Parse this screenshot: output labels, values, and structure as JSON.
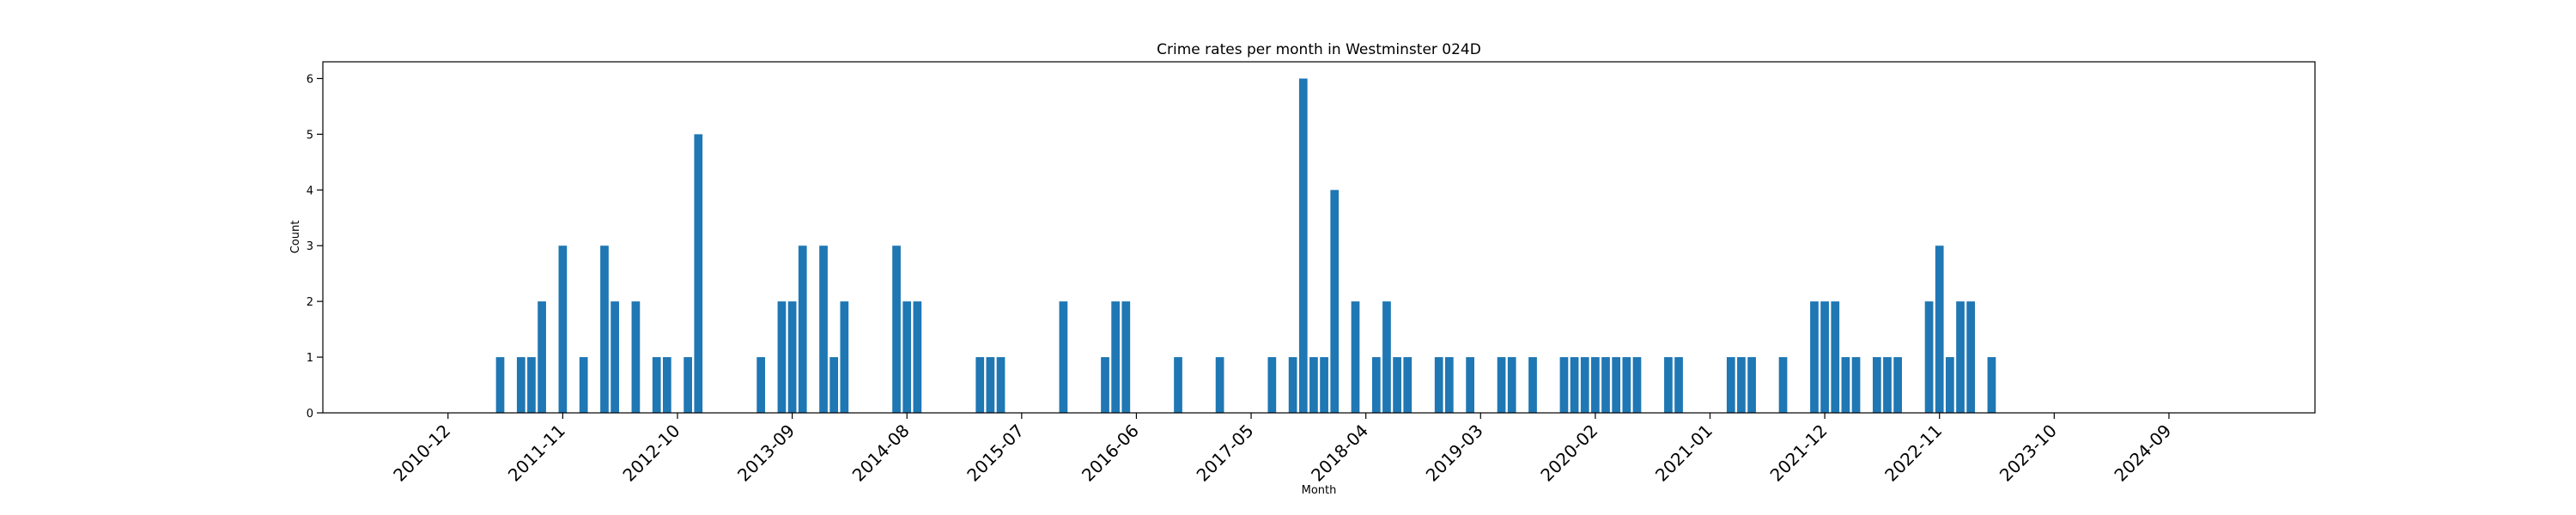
{
  "chart_data": {
    "type": "bar",
    "title": "Crime rates per month in Westminster 024D",
    "xlabel": "Month",
    "ylabel": "Count",
    "ylim": [
      0,
      6.3
    ],
    "yticks": [
      0,
      1,
      2,
      3,
      4,
      5,
      6
    ],
    "xlim": [
      "2009-12",
      "2025-11"
    ],
    "xticks": [
      "2010-12",
      "2011-11",
      "2012-10",
      "2013-09",
      "2014-08",
      "2015-07",
      "2016-06",
      "2017-05",
      "2018-04",
      "2019-03",
      "2020-02",
      "2021-01",
      "2021-12",
      "2022-11",
      "2023-10",
      "2024-09"
    ],
    "bar_color": "#1f77b4",
    "grid": false,
    "legend": false,
    "months": [
      "2011-05",
      "2011-07",
      "2011-08",
      "2011-09",
      "2011-11",
      "2012-01",
      "2012-03",
      "2012-04",
      "2012-06",
      "2012-08",
      "2012-09",
      "2012-11",
      "2012-12",
      "2013-06",
      "2013-08",
      "2013-09",
      "2013-10",
      "2013-12",
      "2014-01",
      "2014-02",
      "2014-07",
      "2014-08",
      "2014-09",
      "2015-03",
      "2015-04",
      "2015-05",
      "2015-11",
      "2016-03",
      "2016-04",
      "2016-05",
      "2016-10",
      "2017-02",
      "2017-07",
      "2017-09",
      "2017-10",
      "2017-11",
      "2017-12",
      "2018-01",
      "2018-03",
      "2018-05",
      "2018-06",
      "2018-07",
      "2018-08",
      "2018-11",
      "2018-12",
      "2019-02",
      "2019-05",
      "2019-06",
      "2019-08",
      "2019-11",
      "2019-12",
      "2020-01",
      "2020-02",
      "2020-03",
      "2020-04",
      "2020-05",
      "2020-06",
      "2020-09",
      "2020-10",
      "2021-03",
      "2021-04",
      "2021-05",
      "2021-08",
      "2021-11",
      "2021-12",
      "2022-01",
      "2022-02",
      "2022-03",
      "2022-05",
      "2022-06",
      "2022-07",
      "2022-10",
      "2022-11",
      "2022-12",
      "2023-01",
      "2023-02",
      "2023-04"
    ],
    "values": [
      1,
      1,
      1,
      2,
      3,
      1,
      3,
      2,
      2,
      1,
      1,
      1,
      5,
      1,
      2,
      2,
      3,
      3,
      1,
      2,
      3,
      2,
      2,
      1,
      1,
      1,
      2,
      1,
      2,
      2,
      1,
      1,
      1,
      1,
      6,
      1,
      1,
      4,
      2,
      1,
      2,
      1,
      1,
      1,
      1,
      1,
      1,
      1,
      1,
      1,
      1,
      1,
      1,
      1,
      1,
      1,
      1,
      1,
      1,
      1,
      1,
      1,
      1,
      2,
      2,
      2,
      1,
      1,
      1,
      1,
      1,
      2,
      3,
      1,
      2,
      2,
      1
    ]
  }
}
